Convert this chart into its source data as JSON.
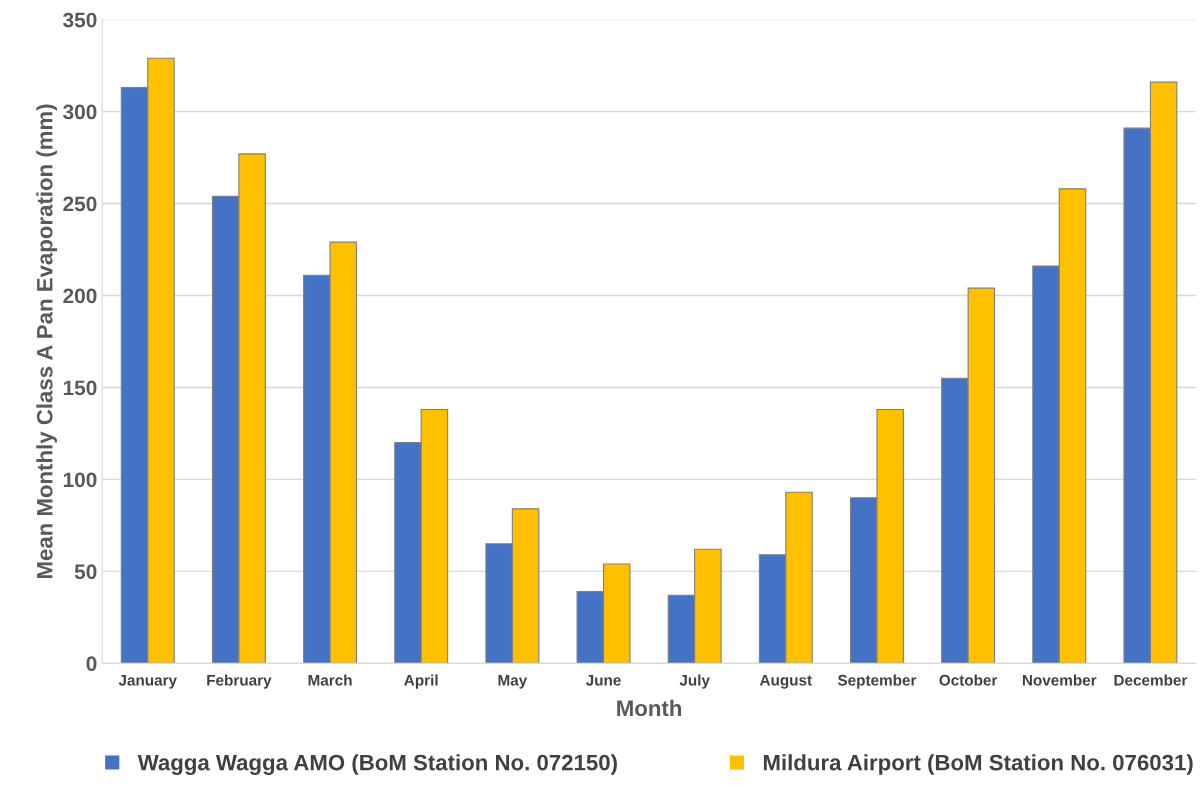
{
  "chart_data": {
    "type": "bar",
    "xlabel": "Month",
    "ylabel": "Mean Monthly Class A Pan Evaporation (mm)",
    "categories": [
      "January",
      "February",
      "March",
      "April",
      "May",
      "June",
      "July",
      "August",
      "September",
      "October",
      "November",
      "December"
    ],
    "series": [
      {
        "name": "Wagga Wagga AMO (BoM Station No. 072150)",
        "color": "#4472c4",
        "values": [
          313,
          254,
          211,
          120,
          65,
          39,
          37,
          59,
          90,
          155,
          216,
          291
        ]
      },
      {
        "name": "Mildura Airport (BoM Station No. 076031)",
        "color": "#ffc000",
        "values": [
          329,
          277,
          229,
          138,
          84,
          54,
          62,
          93,
          138,
          204,
          258,
          316
        ]
      }
    ],
    "ylim": [
      0,
      350
    ],
    "yticks": [
      0,
      50,
      100,
      150,
      200,
      250,
      300,
      350
    ],
    "grid": "y",
    "legend": "bottom"
  }
}
